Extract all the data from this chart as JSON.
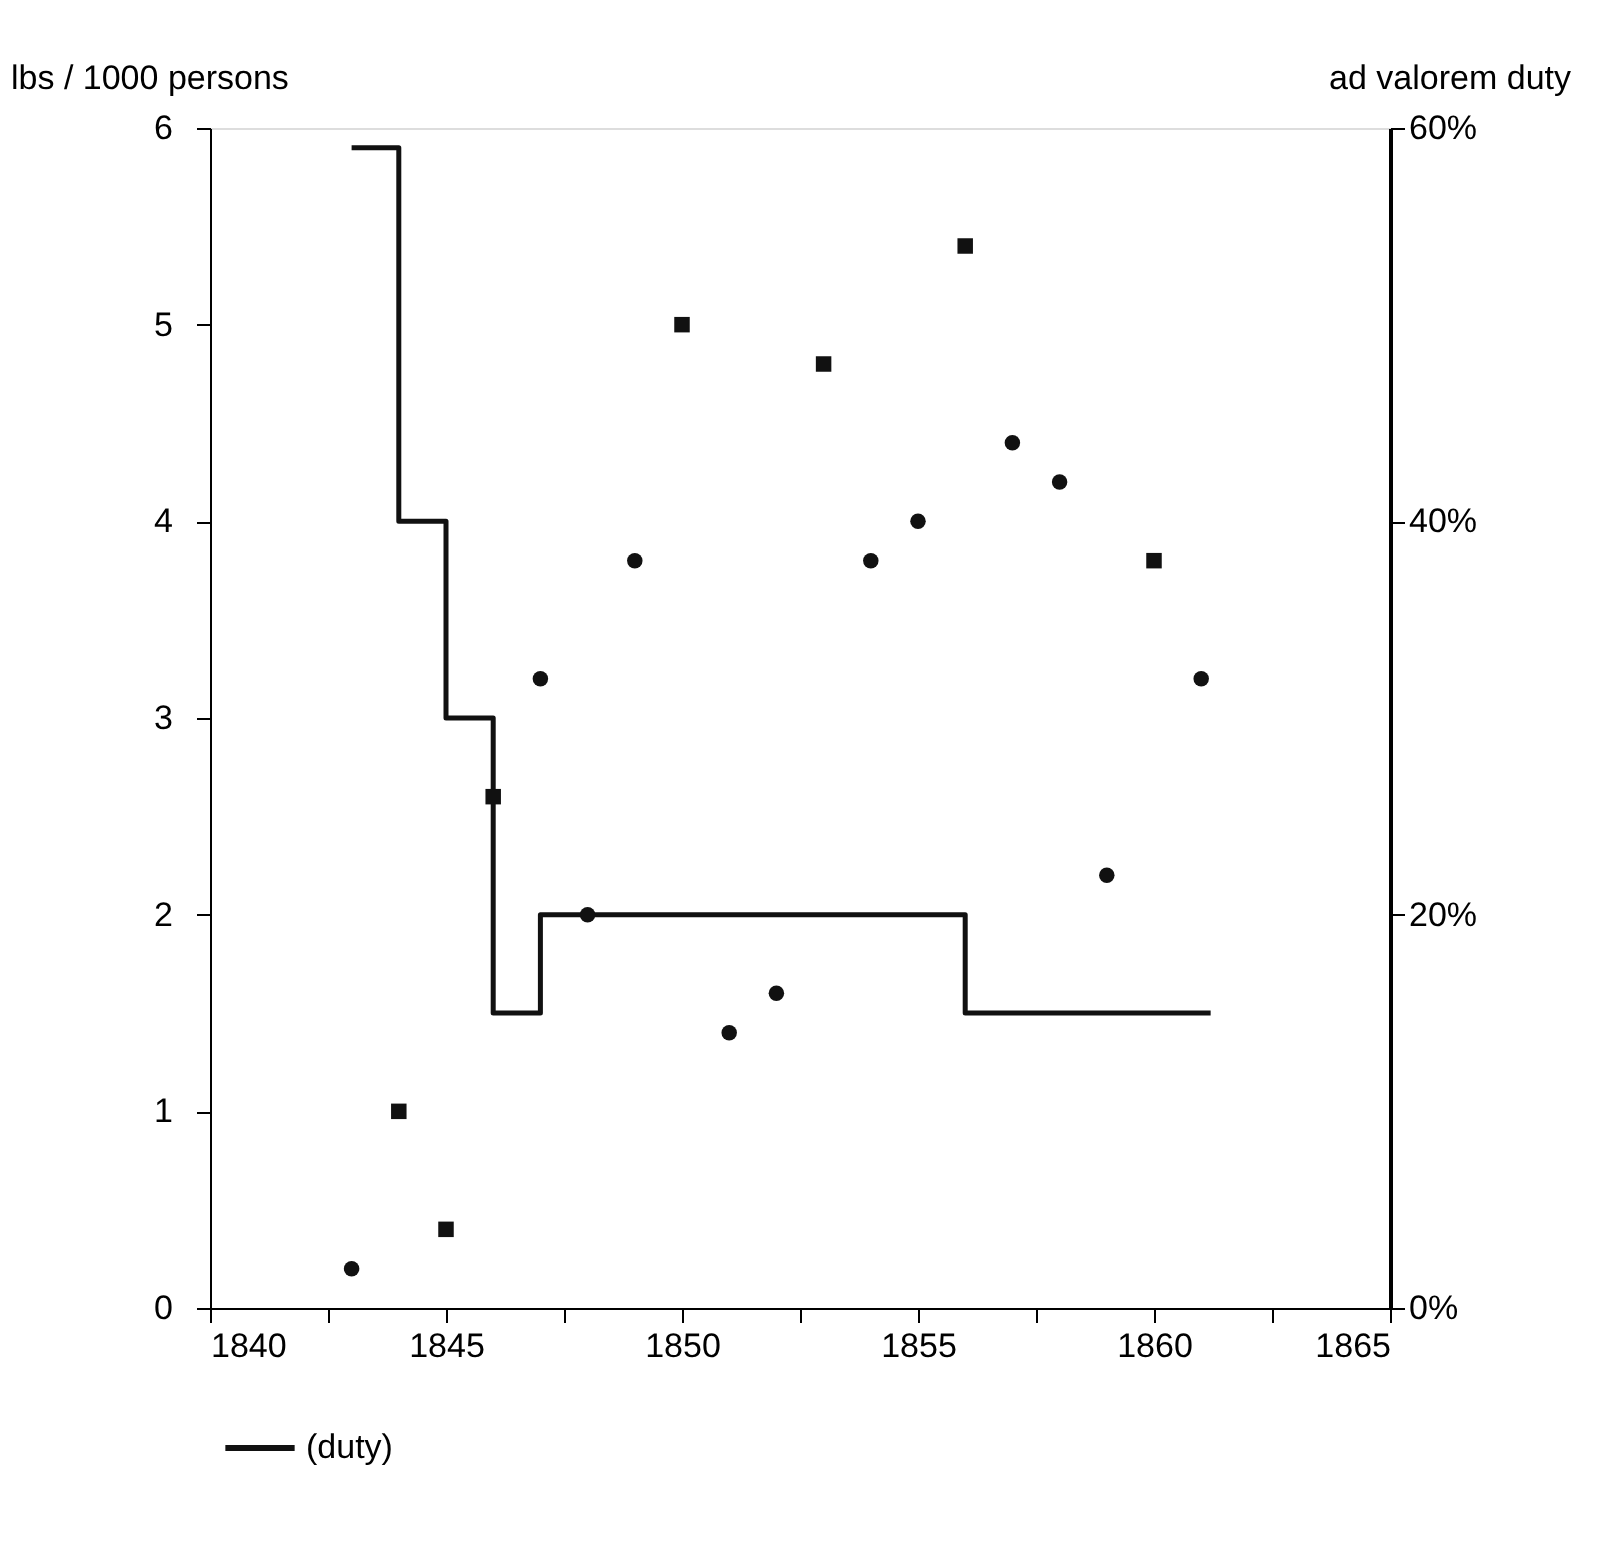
{
  "chart_data": {
    "type": "scatter",
    "ylabel": "lbs / 1000 persons",
    "y2label": "ad valorem duty",
    "xlim": [
      1840,
      1865
    ],
    "xticks": [
      1840,
      {
        "value": 1842.5,
        "label": null
      },
      1845,
      {
        "value": 1847.5,
        "label": null
      },
      1850,
      {
        "value": 1852.5,
        "label": null
      },
      1855,
      {
        "value": 1857.5,
        "label": null
      },
      1860,
      {
        "value": 1862.5,
        "label": null
      },
      1865
    ],
    "ylim": [
      0,
      6
    ],
    "yticks": [
      0,
      1,
      2,
      3,
      4,
      5,
      6
    ],
    "y2lim": [
      0,
      60
    ],
    "y2ticks": [
      {
        "value": 0,
        "label": "0%"
      },
      {
        "value": 20,
        "label": "20%"
      },
      {
        "value": 40,
        "label": "40%"
      },
      {
        "value": 60,
        "label": "60%"
      }
    ],
    "grid": false,
    "legend": "bottom",
    "series": [
      {
        "marker": "circle",
        "color": "#111111",
        "x": [
          1843,
          1847,
          1848,
          1849,
          1851,
          1852,
          1854,
          1855,
          1857,
          1858,
          1859,
          1861
        ],
        "values": [
          0.2,
          3.2,
          2.0,
          3.8,
          1.4,
          1.6,
          3.8,
          4.0,
          4.4,
          4.2,
          2.2,
          3.2
        ]
      },
      {
        "marker": "square",
        "color": "#111111",
        "x": [
          1844,
          1845,
          1846,
          1850,
          1853,
          1856,
          1860
        ],
        "values": [
          1.0,
          0.4,
          2.6,
          5.0,
          4.8,
          5.4,
          3.8
        ]
      },
      {
        "type": "step",
        "name": "(duty)",
        "axis": "y2",
        "color": "#111111",
        "line_style": "solid",
        "x": [
          1843,
          1844,
          1845,
          1846,
          1847,
          1856,
          1861.2
        ],
        "values": [
          59,
          40,
          30,
          15,
          20,
          15,
          15
        ]
      }
    ]
  }
}
